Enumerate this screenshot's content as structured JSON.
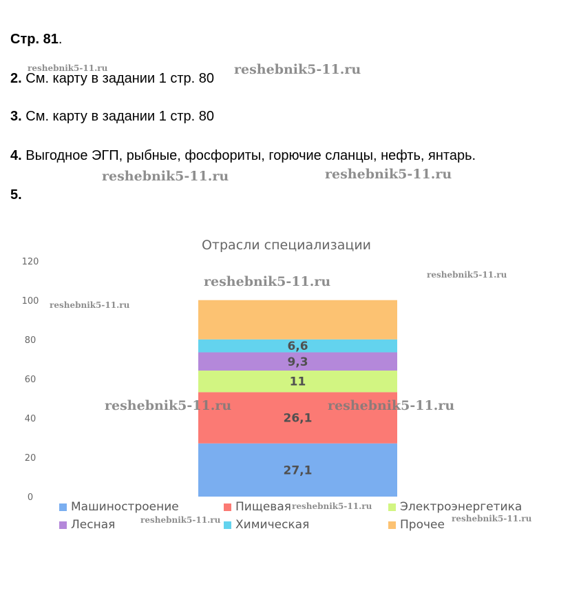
{
  "document": {
    "page_ref": "Стр. 81",
    "page_ref_dot": ".",
    "items": [
      {
        "num": "2.",
        "text": " См. карту в задании 1 стр. 80"
      },
      {
        "num": "3.",
        "text": " См. карту в задании 1 стр. 80"
      },
      {
        "num": "4.",
        "text": " Выгодное ЭГП, рыбные, фосфориты, горючие сланцы, нефть, янтарь."
      },
      {
        "num": "5.",
        "text": ""
      }
    ]
  },
  "watermark": "reshebnik5-11.ru",
  "chart_data": {
    "type": "bar",
    "stacked": true,
    "title": "Отрасли специализации",
    "ylim": [
      0,
      120
    ],
    "yticks": [
      0,
      20,
      40,
      60,
      80,
      100,
      120
    ],
    "grid": false,
    "legend_position": "bottom",
    "series": [
      {
        "name": "Машиностроение",
        "value": 27.1,
        "label": "27,1",
        "color": "#7aaef0"
      },
      {
        "name": "Пищевая",
        "value": 26.1,
        "label": "26,1",
        "color": "#fb7a74"
      },
      {
        "name": "Электроэнергетика",
        "value": 11,
        "label": "11",
        "color": "#d2f582"
      },
      {
        "name": "Лесная",
        "value": 9.3,
        "label": "9,3",
        "color": "#b488da"
      },
      {
        "name": "Химическая",
        "value": 6.6,
        "label": "6,6",
        "color": "#63d3ee"
      },
      {
        "name": "Прочее",
        "value": 20,
        "label": "",
        "color": "#fcc272"
      }
    ]
  }
}
